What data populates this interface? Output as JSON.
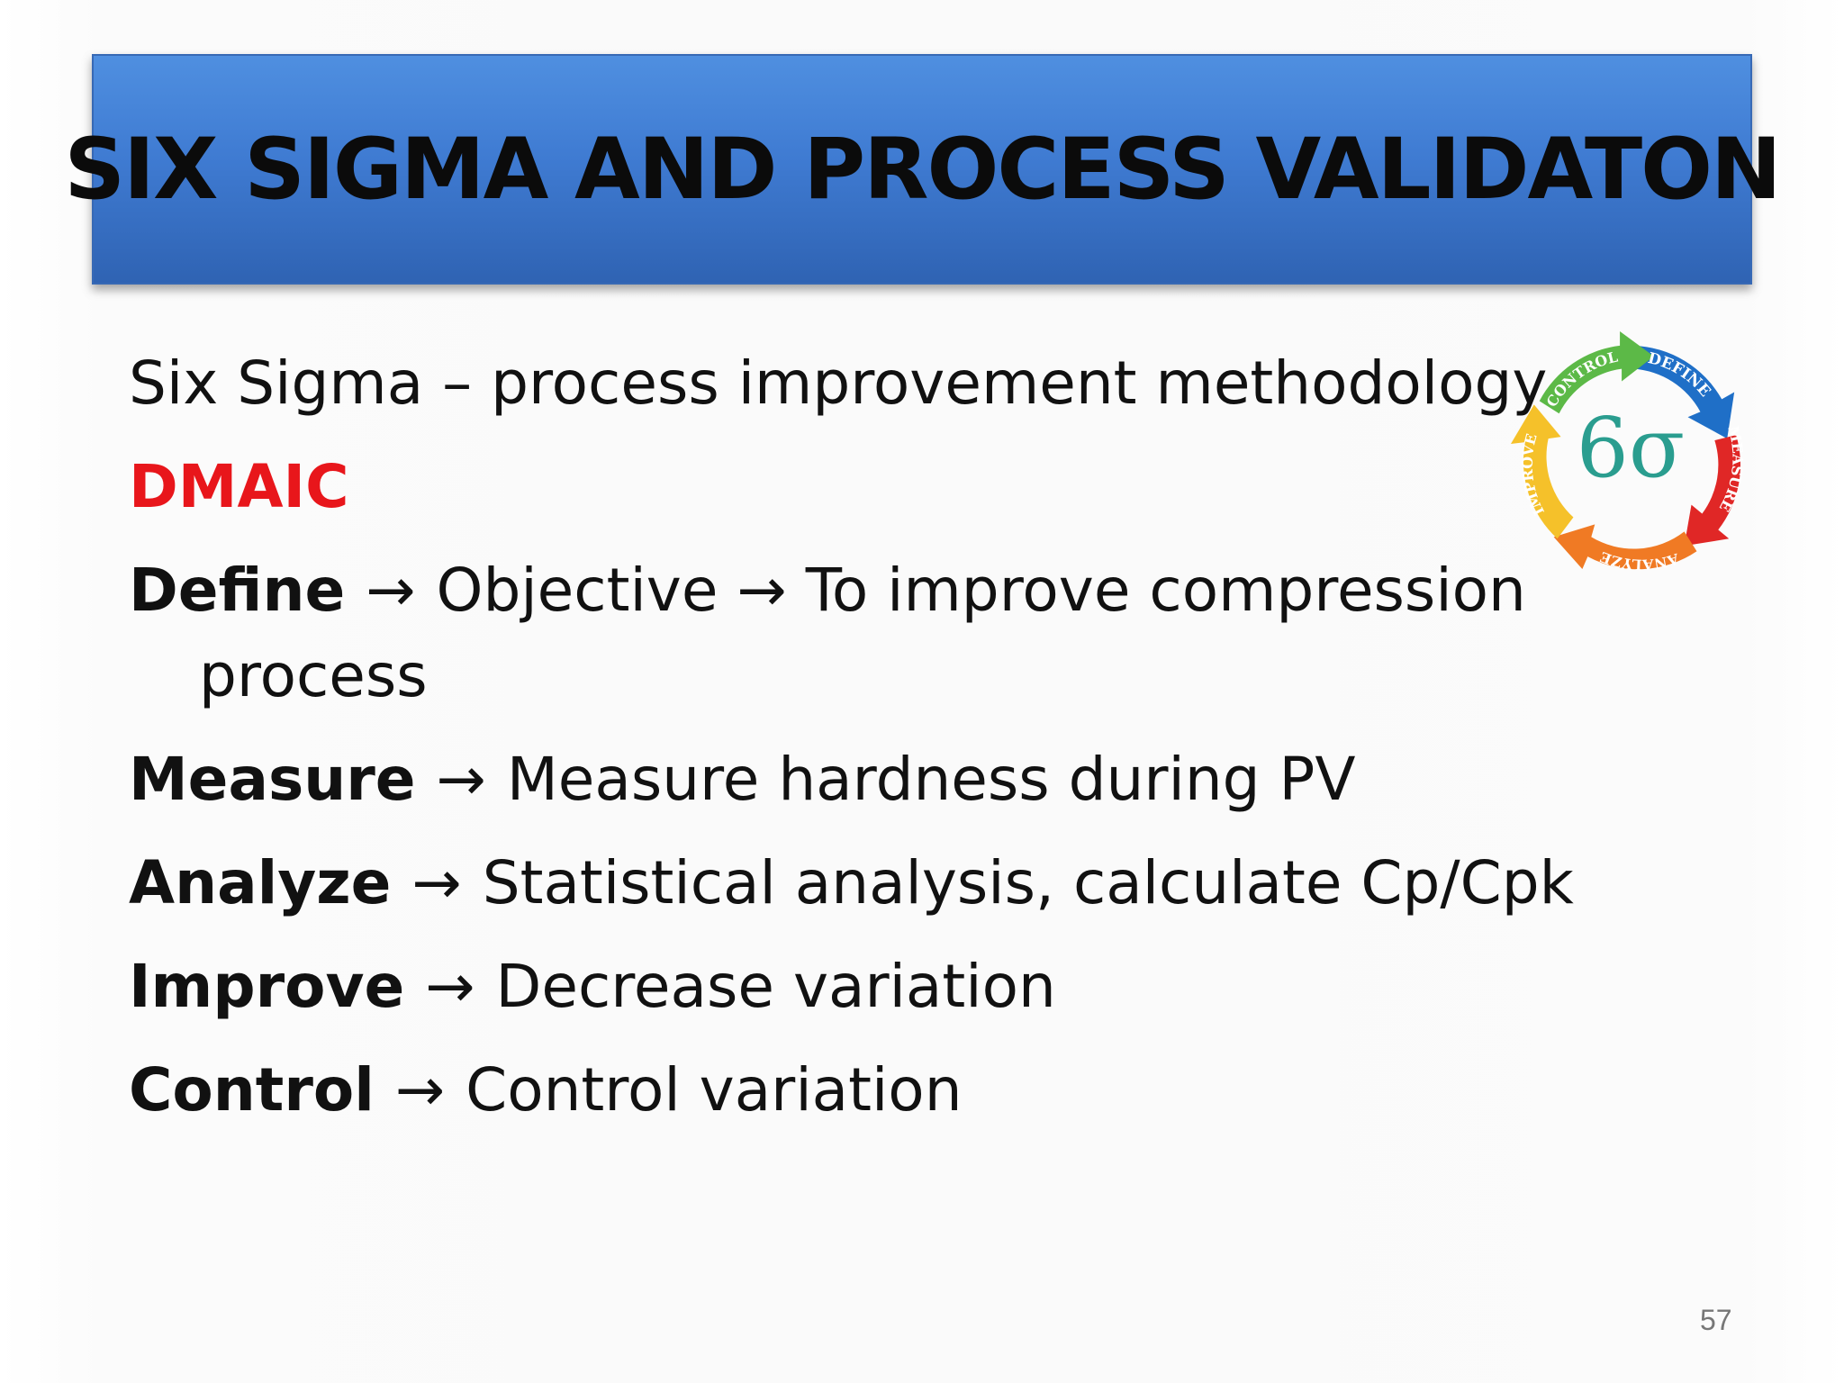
{
  "title": "SIX SIGMA AND PROCESS VALIDATON",
  "intro": "Six Sigma – process improvement methodology",
  "acronym": "DMAIC",
  "arrow": "→",
  "steps": [
    {
      "term": "Define",
      "detail": "Objective → To improve compression",
      "detail_cont": "process"
    },
    {
      "term": "Measure",
      "detail": "Measure hardness during PV"
    },
    {
      "term": "Analyze",
      "detail": "Statistical analysis, calculate Cp/Cpk"
    },
    {
      "term": "Improve",
      "detail": "Decrease variation"
    },
    {
      "term": "Control",
      "detail": "Control variation"
    }
  ],
  "logo": {
    "center_symbol": "6σ",
    "labels": [
      "DEFINE",
      "MEASURE",
      "ANALYZE",
      "IMPROVE",
      "CONTROL"
    ],
    "colors": {
      "define": "#1f6fc7",
      "measure": "#e02726",
      "analyze": "#f07a24",
      "improve": "#f5c12a",
      "control": "#5cb947"
    }
  },
  "page_number": "57",
  "colors": {
    "title_bar": "#3f7bd2",
    "acronym": "#e8161b"
  }
}
